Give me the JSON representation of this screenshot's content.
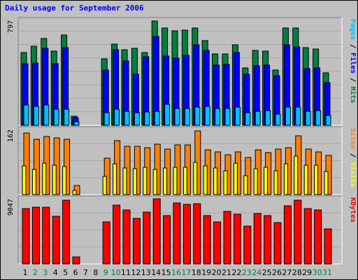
{
  "title": "Daily usage for September 2006",
  "chart_data": [
    {
      "type": "bar",
      "panel": "hits-files-pages",
      "ytick": "797",
      "ylim": [
        0,
        797
      ],
      "legend": [
        {
          "text": "Pages",
          "color": "#00c0ff"
        },
        {
          "text": " / ",
          "color": "#000000"
        },
        {
          "text": "Files",
          "color": "#0000ff"
        },
        {
          "text": " / ",
          "color": "#000000"
        },
        {
          "text": "Hits",
          "color": "#008040"
        }
      ],
      "categories": [
        "1",
        "2",
        "3",
        "4",
        "5",
        "6",
        "7",
        "8",
        "9",
        "10",
        "11",
        "12",
        "13",
        "14",
        "15",
        "16",
        "17",
        "18",
        "19",
        "20",
        "21",
        "22",
        "23",
        "24",
        "25",
        "26",
        "27",
        "28",
        "29",
        "30",
        "31"
      ],
      "series": [
        {
          "name": "Hits",
          "color": "#008040",
          "values": [
            552,
            601,
            659,
            565,
            683,
            71,
            0,
            0,
            503,
            616,
            576,
            582,
            554,
            794,
            738,
            716,
            720,
            739,
            641,
            540,
            541,
            611,
            437,
            570,
            561,
            419,
            738,
            738,
            589,
            581,
            400
          ]
        },
        {
          "name": "Files",
          "color": "#0000ff",
          "values": [
            466,
            473,
            584,
            467,
            590,
            60,
            0,
            0,
            420,
            572,
            488,
            387,
            523,
            676,
            527,
            510,
            530,
            613,
            571,
            456,
            460,
            550,
            388,
            453,
            456,
            377,
            609,
            594,
            432,
            438,
            325
          ]
        },
        {
          "name": "Pages",
          "color": "#00c0ff",
          "values": [
            155,
            146,
            156,
            124,
            121,
            25,
            0,
            0,
            97,
            123,
            106,
            93,
            100,
            106,
            157,
            127,
            127,
            137,
            142,
            127,
            126,
            140,
            94,
            106,
            110,
            83,
            138,
            136,
            104,
            109,
            75
          ]
        }
      ]
    },
    {
      "type": "bar",
      "panel": "visits-sites",
      "ytick": "162",
      "ylim": [
        0,
        162
      ],
      "legend": [
        {
          "text": "Sites",
          "color": "#ff8000"
        },
        {
          "text": " / ",
          "color": "#000000"
        },
        {
          "text": "Visits",
          "color": "#ffff00"
        }
      ],
      "categories": [
        "1",
        "2",
        "3",
        "4",
        "5",
        "6",
        "7",
        "8",
        "9",
        "10",
        "11",
        "12",
        "13",
        "14",
        "15",
        "16",
        "17",
        "18",
        "19",
        "20",
        "21",
        "22",
        "23",
        "24",
        "25",
        "26",
        "27",
        "28",
        "29",
        "30",
        "31"
      ],
      "series": [
        {
          "name": "Visits",
          "color": "#ffff00",
          "values": [
            71,
            62,
            79,
            73,
            70,
            10,
            0,
            0,
            46,
            76,
            67,
            64,
            68,
            63,
            67,
            68,
            68,
            80,
            71,
            66,
            60,
            79,
            47,
            64,
            68,
            59,
            76,
            96,
            73,
            74,
            58
          ]
        },
        {
          "name": "Sites",
          "color": "#ff8000",
          "values": [
            153,
            137,
            144,
            141,
            138,
            22,
            0,
            0,
            90,
            134,
            120,
            121,
            117,
            126,
            114,
            124,
            124,
            159,
            112,
            107,
            100,
            106,
            92,
            111,
            105,
            113,
            116,
            146,
            113,
            106,
            98
          ]
        }
      ]
    },
    {
      "type": "bar",
      "panel": "kbytes",
      "ytick": "9047",
      "ylim": [
        0,
        9047
      ],
      "legend": [
        {
          "text": "KBytes",
          "color": "#ff0000"
        }
      ],
      "categories": [
        "1",
        "2",
        "3",
        "4",
        "5",
        "6",
        "7",
        "8",
        "9",
        "10",
        "11",
        "12",
        "13",
        "14",
        "15",
        "16",
        "17",
        "18",
        "19",
        "20",
        "21",
        "22",
        "23",
        "24",
        "25",
        "26",
        "27",
        "28",
        "29",
        "30",
        "31"
      ],
      "series": [
        {
          "name": "KBytes",
          "color": "#ff0000",
          "values": [
            7724,
            7921,
            7881,
            6572,
            8861,
            1006,
            0,
            0,
            5862,
            8151,
            7488,
            6368,
            7220,
            9047,
            6721,
            8432,
            8226,
            8409,
            6737,
            5864,
            7311,
            6923,
            5236,
            6967,
            6721,
            5764,
            8102,
            8838,
            7650,
            7522,
            4840
          ]
        }
      ]
    }
  ],
  "xaxis": {
    "labels": [
      "1",
      "2",
      "3",
      "4",
      "5",
      "6",
      "7",
      "8",
      "9",
      "10",
      "11",
      "12",
      "13",
      "14",
      "15",
      "16",
      "17",
      "18",
      "19",
      "20",
      "21",
      "22",
      "23",
      "24",
      "25",
      "26",
      "27",
      "28",
      "29",
      "30",
      "31"
    ],
    "weekend": [
      2,
      3,
      9,
      10,
      16,
      17,
      23,
      24,
      30,
      31
    ],
    "colors": {
      "weekday": "#000000",
      "weekend": "#008040"
    }
  }
}
